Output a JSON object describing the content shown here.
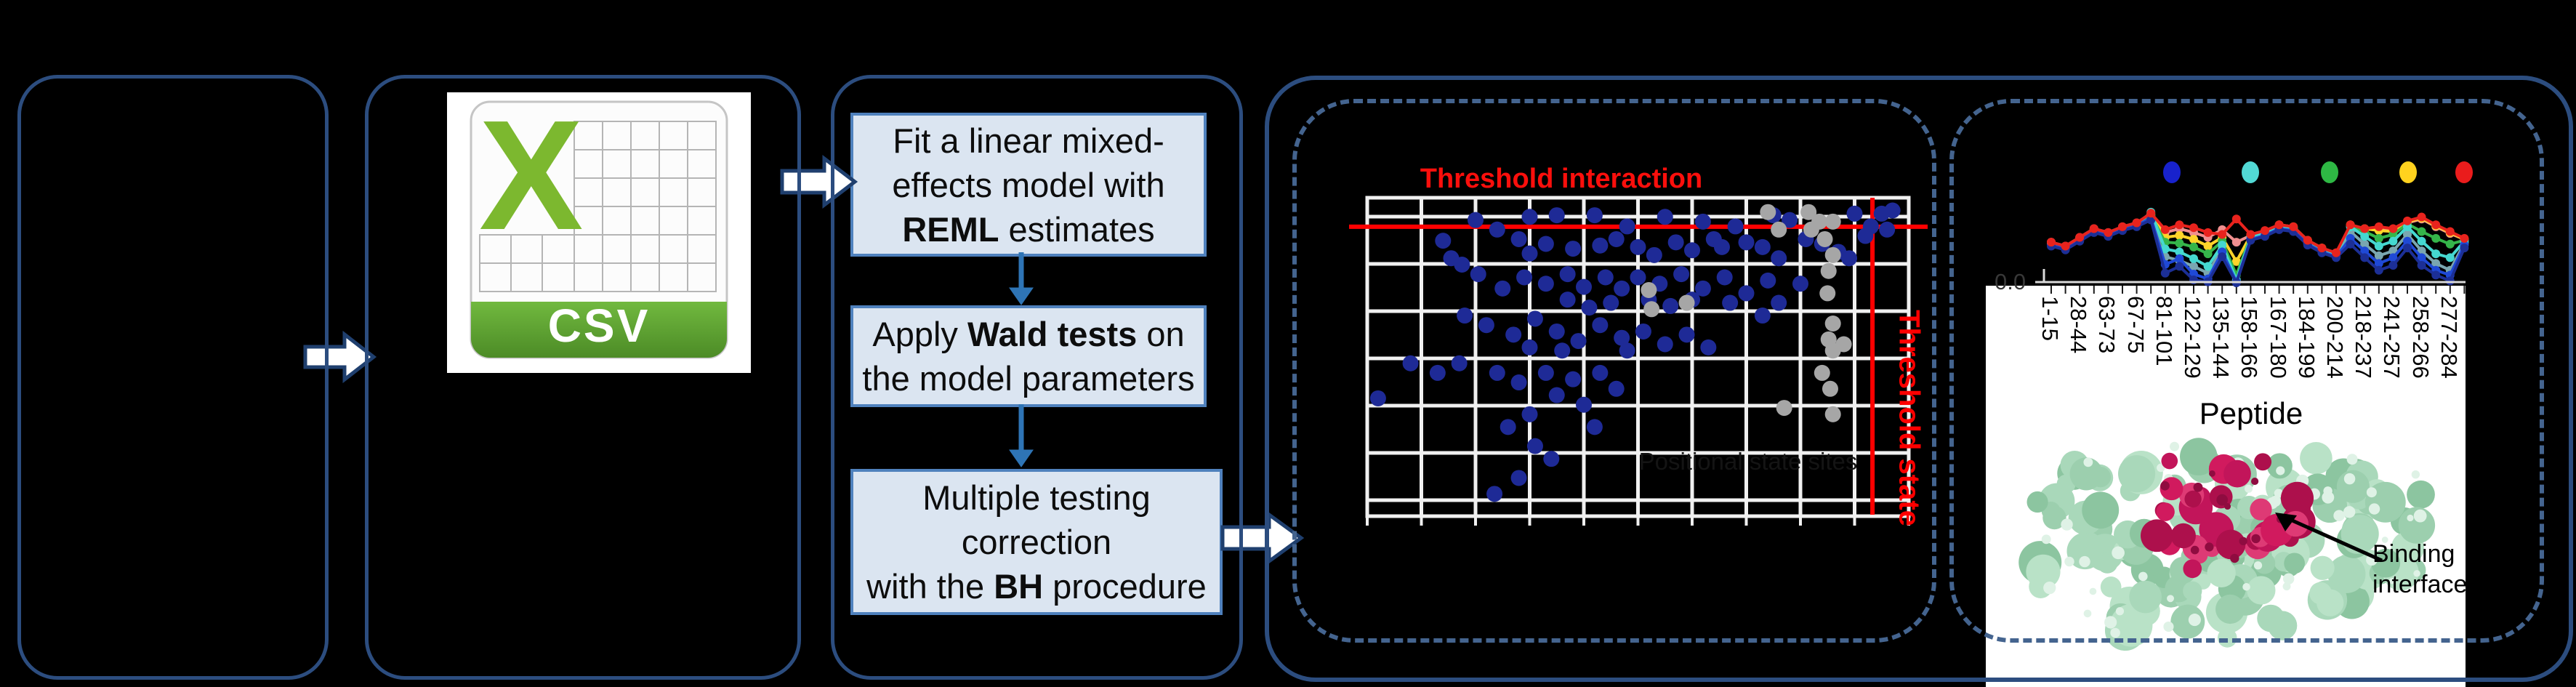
{
  "figure": {
    "background": "#000000"
  },
  "colors": {
    "solid_border": "#2c4d7f",
    "dashed_border": "#44648f",
    "block_arrow_fill": "#ffffff",
    "block_arrow_stroke": "#1f3f6e",
    "step_fill": "#dbe5f1",
    "step_border": "#4f81bd",
    "flow_arrow_blue": "#2e74b5",
    "grid_white": "#f0f0f0",
    "threshold_red": "#fb0f0c",
    "scatter_blue": "#1e2a96",
    "scatter_gray": "#a6a6a6",
    "csv_green_letter": "#7cb82f",
    "csv_banner_top": "#71b93f",
    "csv_banner_bottom": "#4c8b26",
    "protein_green": "#9ccfae",
    "protein_magenta": "#d11a5e"
  },
  "csv": {
    "letter": "X",
    "banner": "CSV"
  },
  "workflow": {
    "steps": [
      {
        "lines": [
          [
            {
              "t": "Fit a linear mixed-"
            }
          ],
          [
            {
              "t": "effects model with"
            }
          ],
          [
            {
              "t": "REML",
              "b": true
            },
            {
              "t": " estimates"
            }
          ]
        ]
      },
      {
        "lines": [
          [
            {
              "t": "Apply "
            },
            {
              "t": "Wald tests",
              "b": true
            },
            {
              "t": " on"
            }
          ],
          [
            {
              "t": "the model parameters"
            }
          ]
        ]
      },
      {
        "lines": [
          [
            {
              "t": "Multiple testing"
            }
          ],
          [
            {
              "t": "correction"
            }
          ],
          [
            {
              "t": "with the "
            },
            {
              "t": "BH",
              "b": true
            },
            {
              "t": " procedure"
            }
          ]
        ]
      }
    ]
  },
  "labels": {
    "binding_line1": "Binding",
    "binding_line2": "interface"
  },
  "chart_data": [
    {
      "type": "scatter",
      "title": "Threshold interaction",
      "right_label": "Threshold state",
      "faint_center_label": "Positional state sites",
      "grid": true,
      "threshold_interaction_y": 0.091,
      "threshold_state_x": 0.933,
      "point_colors": {
        "significant": "#1e2a96",
        "state": "#a6a6a6"
      },
      "points_blue": [
        [
          0.2,
          0.07
        ],
        [
          0.24,
          0.1
        ],
        [
          0.3,
          0.06
        ],
        [
          0.35,
          0.055
        ],
        [
          0.42,
          0.055
        ],
        [
          0.48,
          0.09
        ],
        [
          0.55,
          0.06
        ],
        [
          0.62,
          0.075
        ],
        [
          0.68,
          0.09
        ],
        [
          0.75,
          0.055
        ],
        [
          0.78,
          0.07
        ],
        [
          0.9,
          0.05
        ],
        [
          0.95,
          0.05
        ],
        [
          0.97,
          0.04
        ],
        [
          0.96,
          0.1
        ],
        [
          0.14,
          0.135
        ],
        [
          0.155,
          0.19
        ],
        [
          0.175,
          0.21
        ],
        [
          0.28,
          0.13
        ],
        [
          0.3,
          0.175
        ],
        [
          0.33,
          0.145
        ],
        [
          0.38,
          0.16
        ],
        [
          0.43,
          0.15
        ],
        [
          0.46,
          0.13
        ],
        [
          0.5,
          0.155
        ],
        [
          0.53,
          0.18
        ],
        [
          0.57,
          0.14
        ],
        [
          0.6,
          0.165
        ],
        [
          0.64,
          0.13
        ],
        [
          0.655,
          0.155
        ],
        [
          0.7,
          0.14
        ],
        [
          0.73,
          0.155
        ],
        [
          0.76,
          0.19
        ],
        [
          0.81,
          0.13
        ],
        [
          0.84,
          0.145
        ],
        [
          0.87,
          0.17
        ],
        [
          0.89,
          0.19
        ],
        [
          0.93,
          0.09
        ],
        [
          0.92,
          0.12
        ],
        [
          0.205,
          0.24
        ],
        [
          0.25,
          0.285
        ],
        [
          0.29,
          0.25
        ],
        [
          0.33,
          0.27
        ],
        [
          0.37,
          0.24
        ],
        [
          0.4,
          0.28
        ],
        [
          0.44,
          0.25
        ],
        [
          0.47,
          0.285
        ],
        [
          0.5,
          0.25
        ],
        [
          0.54,
          0.27
        ],
        [
          0.58,
          0.24
        ],
        [
          0.62,
          0.285
        ],
        [
          0.66,
          0.25
        ],
        [
          0.7,
          0.3
        ],
        [
          0.74,
          0.26
        ],
        [
          0.8,
          0.27
        ],
        [
          0.67,
          0.33
        ],
        [
          0.52,
          0.32
        ],
        [
          0.56,
          0.34
        ],
        [
          0.6,
          0.32
        ],
        [
          0.45,
          0.33
        ],
        [
          0.41,
          0.345
        ],
        [
          0.37,
          0.32
        ],
        [
          0.18,
          0.37
        ],
        [
          0.22,
          0.4
        ],
        [
          0.27,
          0.43
        ],
        [
          0.31,
          0.38
        ],
        [
          0.35,
          0.42
        ],
        [
          0.39,
          0.45
        ],
        [
          0.43,
          0.4
        ],
        [
          0.47,
          0.44
        ],
        [
          0.51,
          0.42
        ],
        [
          0.55,
          0.46
        ],
        [
          0.59,
          0.43
        ],
        [
          0.63,
          0.47
        ],
        [
          0.48,
          0.48
        ],
        [
          0.36,
          0.48
        ],
        [
          0.3,
          0.47
        ],
        [
          0.73,
          0.37
        ],
        [
          0.76,
          0.33
        ],
        [
          0.08,
          0.52
        ],
        [
          0.13,
          0.55
        ],
        [
          0.17,
          0.52
        ],
        [
          0.24,
          0.55
        ],
        [
          0.28,
          0.58
        ],
        [
          0.33,
          0.55
        ],
        [
          0.38,
          0.57
        ],
        [
          0.43,
          0.55
        ],
        [
          0.35,
          0.62
        ],
        [
          0.4,
          0.65
        ],
        [
          0.3,
          0.68
        ],
        [
          0.26,
          0.72
        ],
        [
          0.31,
          0.78
        ],
        [
          0.34,
          0.82
        ],
        [
          0.28,
          0.88
        ],
        [
          0.235,
          0.93
        ],
        [
          0.02,
          0.63
        ],
        [
          0.42,
          0.72
        ],
        [
          0.46,
          0.6
        ]
      ],
      "points_gray": [
        [
          0.74,
          0.045
        ],
        [
          0.76,
          0.1
        ],
        [
          0.815,
          0.045
        ],
        [
          0.835,
          0.075
        ],
        [
          0.86,
          0.075
        ],
        [
          0.82,
          0.1
        ],
        [
          0.845,
          0.13
        ],
        [
          0.52,
          0.29
        ],
        [
          0.525,
          0.35
        ],
        [
          0.59,
          0.33
        ],
        [
          0.86,
          0.18
        ],
        [
          0.852,
          0.23
        ],
        [
          0.85,
          0.3
        ],
        [
          0.86,
          0.395
        ],
        [
          0.852,
          0.445
        ],
        [
          0.88,
          0.46
        ],
        [
          0.86,
          0.48
        ],
        [
          0.84,
          0.55
        ],
        [
          0.855,
          0.6
        ],
        [
          0.77,
          0.66
        ],
        [
          0.86,
          0.68
        ]
      ]
    },
    {
      "type": "line",
      "xlabel": "Peptide",
      "y0_label": "0.0",
      "x_tick_labels": [
        "1-15",
        "28-44",
        "63-73",
        "67-75",
        "81-101",
        "122-129",
        "135-144",
        "158-166",
        "167-180",
        "184-199",
        "200-214",
        "218-237",
        "241-257",
        "258-266",
        "277-284"
      ],
      "legend_dot_colors": [
        "#1822cc",
        "#52d9d5",
        "#2eb844",
        "#ffd21e",
        "#ea1c1c"
      ],
      "series": [
        {
          "color": "#7aa6b0",
          "values": [
            0.4,
            0.36,
            0.45,
            0.54,
            0.5,
            0.56,
            0.6,
            0.69,
            0.27,
            0.23,
            0.17,
            0.1,
            0.35,
            0.02,
            0.46,
            0.5,
            0.57,
            0.55,
            0.41,
            0.33,
            0.28,
            0.53,
            0.4,
            0.28,
            0.33,
            0.5,
            0.33,
            0.2,
            0.13,
            0.41
          ]
        },
        {
          "color": "#f08f8f",
          "values": [
            0.42,
            0.38,
            0.47,
            0.56,
            0.52,
            0.58,
            0.62,
            0.7,
            0.52,
            0.56,
            0.52,
            0.47,
            0.55,
            0.42,
            0.49,
            0.53,
            0.59,
            0.57,
            0.43,
            0.35,
            0.31,
            0.59,
            0.55,
            0.56,
            0.54,
            0.62,
            0.66,
            0.58,
            0.51,
            0.45
          ]
        },
        {
          "color": "#ffd42a",
          "values": [
            0.41,
            0.37,
            0.46,
            0.55,
            0.51,
            0.57,
            0.61,
            0.71,
            0.47,
            0.49,
            0.45,
            0.38,
            0.47,
            0.22,
            0.49,
            0.53,
            0.6,
            0.58,
            0.44,
            0.36,
            0.3,
            0.6,
            0.56,
            0.54,
            0.53,
            0.63,
            0.67,
            0.59,
            0.52,
            0.45
          ]
        },
        {
          "color": "#35b54a",
          "values": [
            0.41,
            0.37,
            0.46,
            0.55,
            0.51,
            0.57,
            0.61,
            0.7,
            0.42,
            0.41,
            0.37,
            0.3,
            0.43,
            0.08,
            0.48,
            0.52,
            0.59,
            0.57,
            0.43,
            0.35,
            0.3,
            0.59,
            0.53,
            0.46,
            0.5,
            0.61,
            0.53,
            0.46,
            0.4,
            0.44
          ]
        },
        {
          "color": "#45d8d0",
          "values": [
            0.4,
            0.36,
            0.45,
            0.54,
            0.5,
            0.56,
            0.6,
            0.73,
            0.35,
            0.32,
            0.25,
            0.17,
            0.39,
            0.03,
            0.47,
            0.51,
            0.58,
            0.56,
            0.42,
            0.34,
            0.29,
            0.58,
            0.48,
            0.38,
            0.43,
            0.58,
            0.43,
            0.3,
            0.26,
            0.43
          ]
        },
        {
          "color": "#1f49d6",
          "values": [
            0.39,
            0.35,
            0.44,
            0.53,
            0.49,
            0.55,
            0.59,
            0.67,
            0.19,
            0.25,
            0.09,
            0.04,
            0.32,
            0.01,
            0.45,
            0.49,
            0.56,
            0.54,
            0.4,
            0.32,
            0.27,
            0.46,
            0.33,
            0.2,
            0.26,
            0.43,
            0.26,
            0.13,
            0.08,
            0.39
          ]
        },
        {
          "color": "#1c2f96",
          "values": [
            0.38,
            0.34,
            0.43,
            0.52,
            0.48,
            0.54,
            0.58,
            0.65,
            0.1,
            0.17,
            0.03,
            0.01,
            0.27,
            0.0,
            0.44,
            0.48,
            0.55,
            0.53,
            0.39,
            0.31,
            0.26,
            0.4,
            0.26,
            0.13,
            0.18,
            0.36,
            0.18,
            0.08,
            0.02,
            0.36
          ]
        },
        {
          "color": "#e8231d",
          "values": [
            0.42,
            0.38,
            0.47,
            0.56,
            0.52,
            0.58,
            0.62,
            0.72,
            0.55,
            0.6,
            0.57,
            0.52,
            0.5,
            0.66,
            0.5,
            0.54,
            0.6,
            0.58,
            0.44,
            0.36,
            0.31,
            0.6,
            0.56,
            0.58,
            0.56,
            0.64,
            0.68,
            0.6,
            0.53,
            0.46
          ]
        }
      ]
    }
  ]
}
